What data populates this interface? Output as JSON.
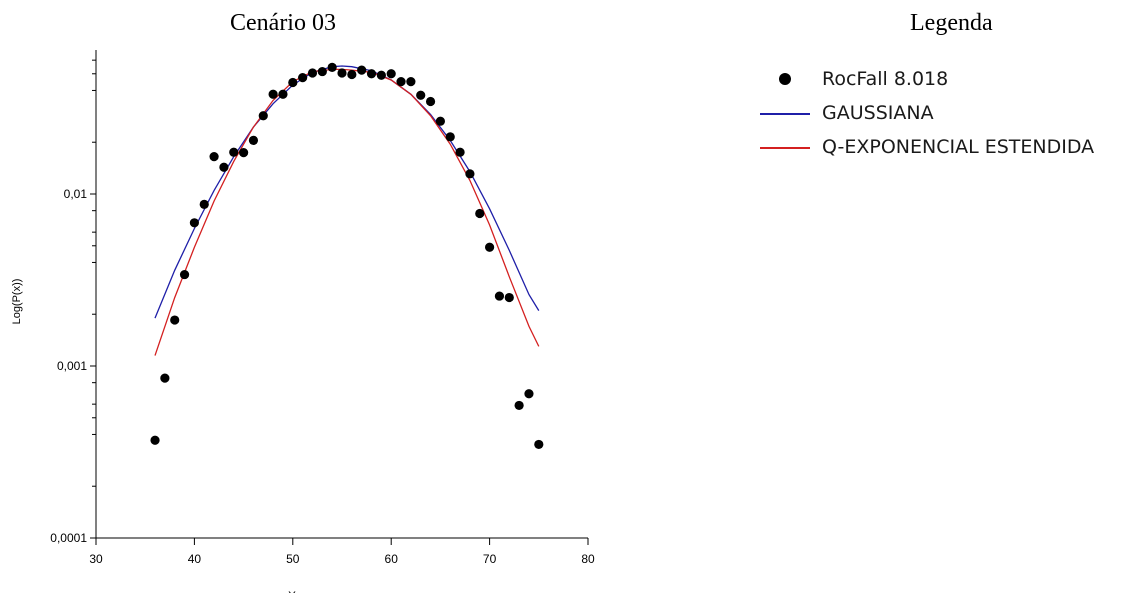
{
  "title": "Cenário 03",
  "legend_title": "Legenda",
  "colors": {
    "data": "#000000",
    "gaussian": "#1f1fa8",
    "qexp": "#d42020"
  },
  "chart_data": {
    "type": "scatter",
    "ylabel": "Log(P(x))",
    "xlabel": "X",
    "x_ticks": [
      "30",
      "40",
      "50",
      "60",
      "70",
      "80"
    ],
    "y_ticks": [
      "0,0001",
      "0,001",
      "0,01"
    ],
    "xlim": [
      30,
      80
    ],
    "ylim": [
      0.0001,
      0.1
    ],
    "yscale": "log",
    "legend_position": "right",
    "series": [
      {
        "name": "RocFall 8.018",
        "kind": "points",
        "x": [
          36,
          37,
          38,
          39,
          40,
          41,
          42,
          43,
          44,
          45,
          46,
          47,
          48,
          49,
          50,
          51,
          52,
          53,
          54,
          55,
          56,
          57,
          58,
          59,
          60,
          61,
          62,
          63,
          64,
          65,
          66,
          67,
          68,
          69,
          70,
          71,
          72,
          73,
          74,
          75
        ],
        "y": [
          0.00037,
          0.00085,
          0.00185,
          0.0034,
          0.0068,
          0.0087,
          0.0165,
          0.0143,
          0.0175,
          0.0174,
          0.0205,
          0.0285,
          0.038,
          0.038,
          0.0445,
          0.0475,
          0.0505,
          0.0515,
          0.0545,
          0.0505,
          0.0495,
          0.0525,
          0.05,
          0.049,
          0.05,
          0.045,
          0.045,
          0.0375,
          0.0345,
          0.0265,
          0.0215,
          0.0175,
          0.0131,
          0.0077,
          0.0049,
          0.00255,
          0.0025,
          0.00059,
          0.00069,
          0.00035
        ]
      },
      {
        "name": "GAUSSIANA",
        "kind": "line",
        "x": [
          36,
          38,
          40,
          42,
          44,
          46,
          48,
          50,
          52,
          54,
          55,
          56,
          58,
          60,
          62,
          64,
          66,
          68,
          70,
          72,
          74,
          75
        ],
        "y": [
          0.0019,
          0.0036,
          0.0063,
          0.0105,
          0.0165,
          0.0245,
          0.0335,
          0.043,
          0.051,
          0.055,
          0.0555,
          0.055,
          0.052,
          0.046,
          0.038,
          0.029,
          0.0205,
          0.0135,
          0.0082,
          0.0047,
          0.0026,
          0.0021
        ]
      },
      {
        "name": "Q-EXPONENCIAL ESTENDIDA",
        "kind": "line",
        "x": [
          36,
          38,
          40,
          42,
          44,
          46,
          48,
          50,
          52,
          54,
          55,
          56,
          58,
          60,
          62,
          64,
          66,
          68,
          70,
          72,
          74,
          75
        ],
        "y": [
          0.00115,
          0.0025,
          0.0049,
          0.0091,
          0.0155,
          0.0245,
          0.035,
          0.045,
          0.0515,
          0.053,
          0.053,
          0.0525,
          0.051,
          0.046,
          0.038,
          0.0285,
          0.0195,
          0.012,
          0.0066,
          0.0033,
          0.0017,
          0.0013
        ]
      }
    ]
  }
}
